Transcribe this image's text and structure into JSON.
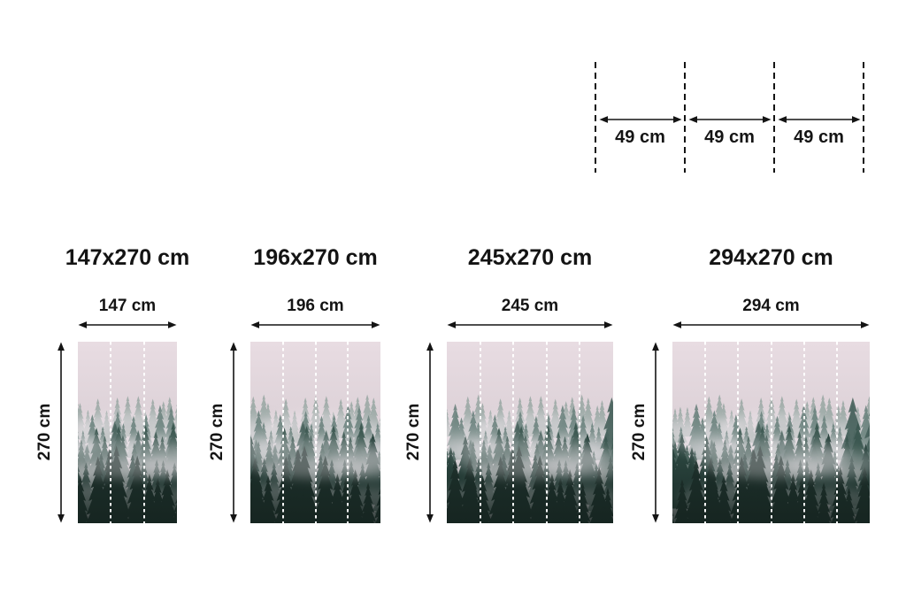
{
  "panel_diagram": {
    "segments": [
      {
        "label": "49 cm"
      },
      {
        "label": "49 cm"
      },
      {
        "label": "49 cm"
      }
    ]
  },
  "variants": [
    {
      "title": "147x270 cm",
      "width_label": "147 cm",
      "height_label": "270 cm",
      "panels": 3
    },
    {
      "title": "196x270 cm",
      "width_label": "196 cm",
      "height_label": "270 cm",
      "panels": 4
    },
    {
      "title": "245x270 cm",
      "width_label": "245 cm",
      "height_label": "270 cm",
      "panels": 5
    },
    {
      "title": "294x270 cm",
      "width_label": "294 cm",
      "height_label": "270 cm",
      "panels": 6
    }
  ],
  "mural_image": {
    "description": "Misty coniferous forest in fog, split into 49 cm wallpaper panels marked by white dotted lines",
    "palette": {
      "sky_top": "#e8dce2",
      "sky_mid": "#dcd1d7",
      "fog": "#cfc9ce",
      "fog_light": "#ece5ea",
      "trees_far": "#93a49f",
      "trees_mid": "#6a827d",
      "trees_emergent": "#47625c",
      "trees_near": "#3c5851",
      "trees_nearer": "#2a443e",
      "trees_front": "#1d302b",
      "shadow": "#15231f"
    },
    "ink": "#141414"
  }
}
